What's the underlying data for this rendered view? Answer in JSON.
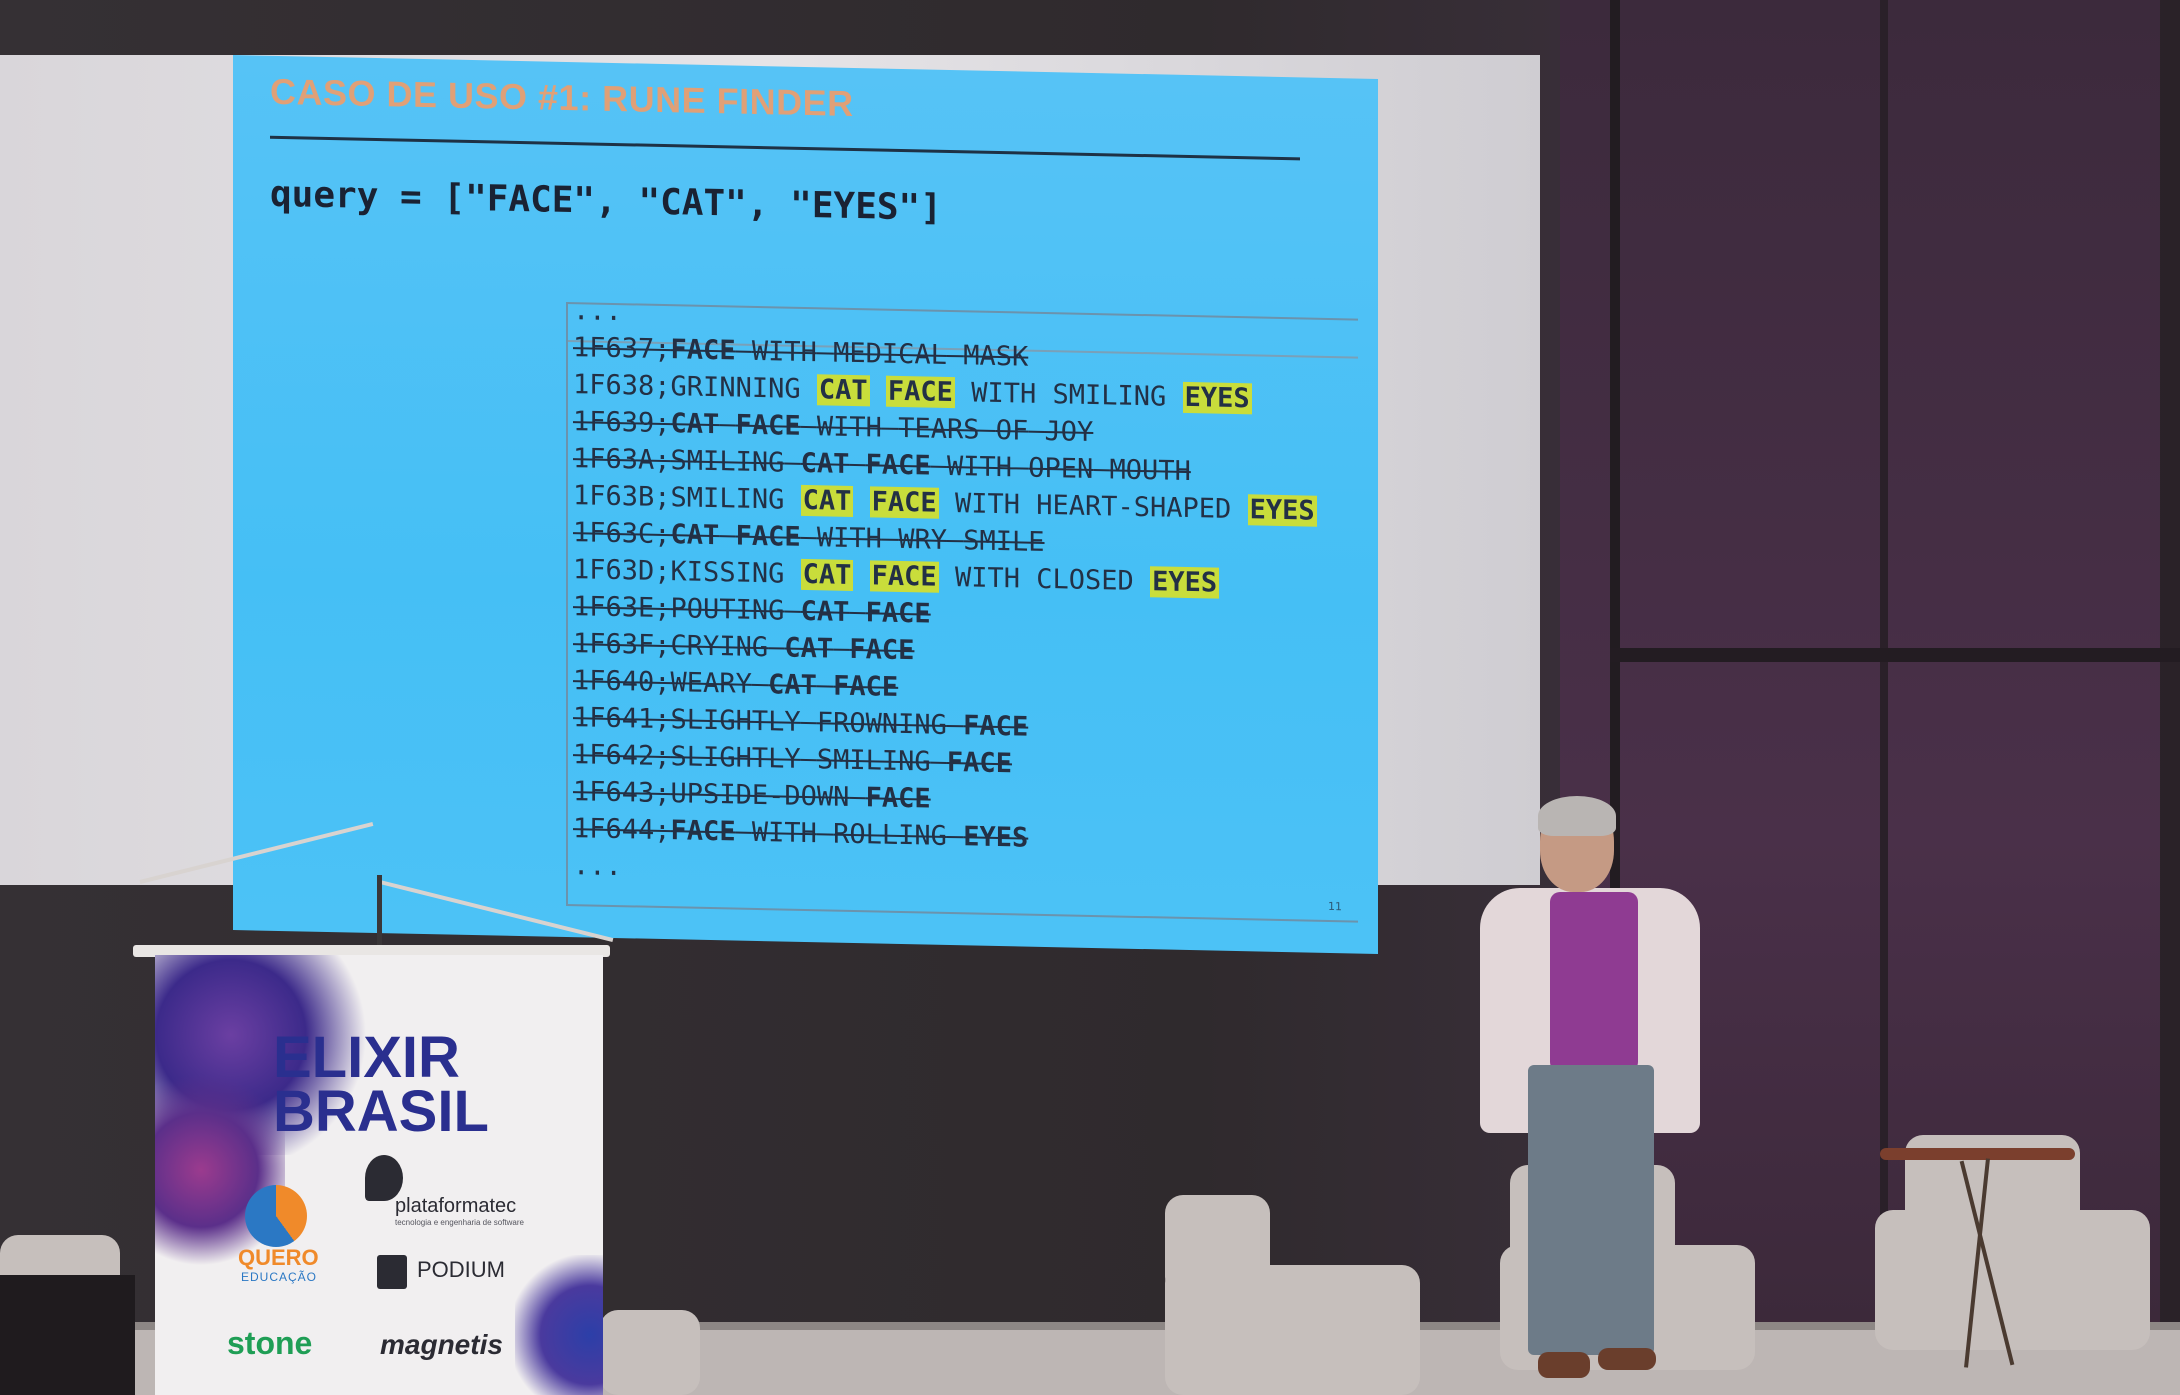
{
  "slide": {
    "title": "CASO DE USO #1: RUNE FINDER",
    "query": "query = [\"FACE\", \"CAT\", \"EYES\"]",
    "ellipsis_top": "...",
    "ellipsis_bottom": "...",
    "page_number": "11",
    "lines": [
      {
        "code": "1F637",
        "name": "FACE WITH MEDICAL MASK",
        "match": false
      },
      {
        "code": "1F638",
        "name": "GRINNING CAT FACE WITH SMILING EYES",
        "match": true
      },
      {
        "code": "1F639",
        "name": "CAT FACE WITH TEARS OF JOY",
        "match": false
      },
      {
        "code": "1F63A",
        "name": "SMILING CAT FACE WITH OPEN MOUTH",
        "match": false
      },
      {
        "code": "1F63B",
        "name": "SMILING CAT FACE WITH HEART-SHAPED EYES",
        "match": true
      },
      {
        "code": "1F63C",
        "name": "CAT FACE WITH WRY SMILE",
        "match": false
      },
      {
        "code": "1F63D",
        "name": "KISSING CAT FACE WITH CLOSED EYES",
        "match": true
      },
      {
        "code": "1F63E",
        "name": "POUTING CAT FACE",
        "match": false
      },
      {
        "code": "1F63F",
        "name": "CRYING CAT FACE",
        "match": false
      },
      {
        "code": "1F640",
        "name": "WEARY CAT FACE",
        "match": false
      },
      {
        "code": "1F641",
        "name": "SLIGHTLY FROWNING FACE",
        "match": false
      },
      {
        "code": "1F642",
        "name": "SLIGHTLY SMILING FACE",
        "match": false
      },
      {
        "code": "1F643",
        "name": "UPSIDE-DOWN FACE",
        "match": false
      },
      {
        "code": "1F644",
        "name": "FACE WITH ROLLING EYES",
        "match": false
      }
    ],
    "keywords": [
      "FACE",
      "CAT",
      "EYES"
    ],
    "highlight_color": "#c9dd3b"
  },
  "banner": {
    "title_line1": "ELIXIR",
    "title_line2": "BRASIL",
    "sponsors": {
      "plataformatec": "plataformatec",
      "plataformatec_tagline": "tecnologia e engenharia de software",
      "quero": "QUERO",
      "quero_sub": "EDUCAÇÃO",
      "podium": "PODIUM",
      "stone": "stone",
      "magnetis": "magnetis"
    }
  }
}
